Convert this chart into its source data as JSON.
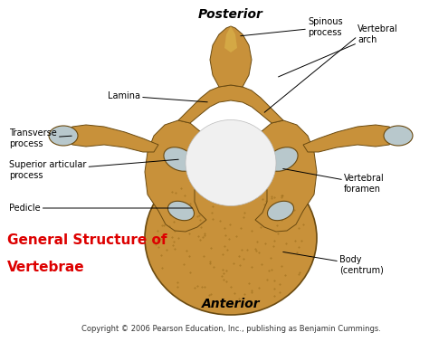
{
  "bg_color": "#ffffff",
  "title_line1": "General Structure of",
  "title_line2": "Vertebrae",
  "title_color": "#dd0000",
  "title_fontsize": 11,
  "copyright": "Copyright © 2006 Pearson Education, Inc., publishing as Benjamin Cummings.",
  "copyright_fontsize": 6,
  "posterior_label": "Posterior",
  "anterior_label": "Anterior",
  "bone_color": "#c8913a",
  "bone_dark": "#a07020",
  "bone_mid": "#d4a845",
  "bone_light": "#ddb855",
  "body_color": "#c8913a",
  "body_spot": "#8a6010",
  "cartilage_color": "#b8c8cc",
  "foramen_color": "#e8e8e8",
  "edge_color": "#6a4a10",
  "annot_fontsize": 7,
  "figw": 4.74,
  "figh": 3.78,
  "dpi": 100
}
